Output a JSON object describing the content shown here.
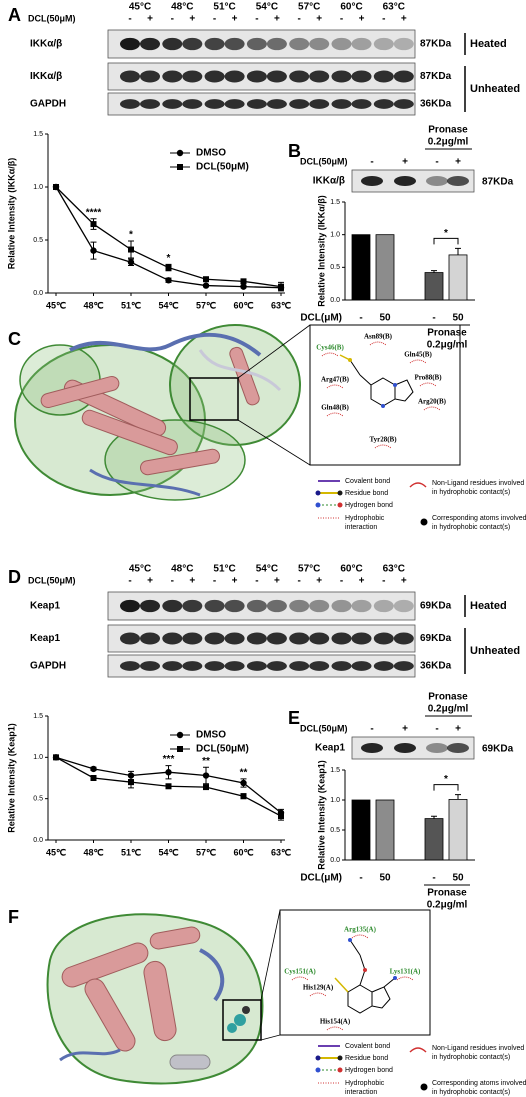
{
  "blot_A": {
    "letter": "A",
    "treatment": "DCL(50μM)",
    "temperatures": [
      "45°C",
      "48°C",
      "51°C",
      "54°C",
      "57°C",
      "60°C",
      "63°C"
    ],
    "signs": [
      "-",
      "+"
    ],
    "rows": [
      {
        "protein": "IKKα/β",
        "size": "87KDa"
      },
      {
        "protein": "IKKα/β",
        "size": "87KDa"
      },
      {
        "protein": "GAPDH",
        "size": "36KDa"
      }
    ],
    "groups": [
      "Heated",
      "Unheated"
    ]
  },
  "blot_B": {
    "letter": "B",
    "treatment": "DCL(50μM)",
    "signs": [
      "-",
      "+",
      "-",
      "+"
    ],
    "pronase": [
      "Pronase",
      "0.2μg/ml"
    ],
    "protein": "IKKα/β",
    "size": "87KDa"
  },
  "docking_C": {
    "letter": "C",
    "residues": [
      {
        "name": "Asn89(B)",
        "color": "#000000"
      },
      {
        "name": "Cys46(B)",
        "color": "#2e8b2e"
      },
      {
        "name": "Gln45(B)",
        "color": "#000000"
      },
      {
        "name": "Arg47(B)",
        "color": "#000000"
      },
      {
        "name": "Pro88(B)",
        "color": "#000000"
      },
      {
        "name": "Arg20(B)",
        "color": "#000000"
      },
      {
        "name": "Gln48(B)",
        "color": "#000000"
      },
      {
        "name": "Tyr28(B)",
        "color": "#000000"
      }
    ],
    "legend": [
      "Covalent bond",
      "Residue bond",
      "Hydrogen bond",
      [
        "Non-Ligand residues involved",
        "in hydrophobic contact(s)"
      ],
      [
        "Hydrophobic",
        "interaction"
      ],
      [
        "Corresponding atoms involved",
        "in hydrophobic contact(s)"
      ]
    ]
  },
  "blot_D": {
    "letter": "D",
    "treatment": "DCL(50μM)",
    "temperatures": [
      "45°C",
      "48°C",
      "51°C",
      "54°C",
      "57°C",
      "60°C",
      "63°C"
    ],
    "signs": [
      "-",
      "+"
    ],
    "rows": [
      {
        "protein": "Keap1",
        "size": "69KDa"
      },
      {
        "protein": "Keap1",
        "size": "69KDa"
      },
      {
        "protein": "GAPDH",
        "size": "36KDa"
      }
    ],
    "groups": [
      "Heated",
      "Unheated"
    ]
  },
  "blot_E": {
    "letter": "E",
    "treatment": "DCL(50μM)",
    "signs": [
      "-",
      "+",
      "-",
      "+"
    ],
    "pronase": [
      "Pronase",
      "0.2μg/ml"
    ],
    "protein": "Keap1",
    "size": "69KDa"
  },
  "docking_F": {
    "letter": "F",
    "residues": [
      {
        "name": "Arg135(A)",
        "color": "#2e8b2e"
      },
      {
        "name": "Cys151(A)",
        "color": "#2e8b2e"
      },
      {
        "name": "Lys131(A)",
        "color": "#2e8b2e"
      },
      {
        "name": "His129(A)",
        "color": "#000000"
      },
      {
        "name": "His154(A)",
        "color": "#000000"
      }
    ],
    "legend": [
      "Covalent bond",
      "Residue bond",
      "Hydrogen bond",
      [
        "Non-Ligand residues involved",
        "in hydrophobic contact(s)"
      ],
      [
        "Hydrophobic",
        "interaction"
      ],
      [
        "Corresponding atoms involved",
        "in hydrophobic contact(s)"
      ]
    ]
  },
  "chart_data": [
    {
      "type": "line",
      "y_label": "Relative Intensity (IKKα/β)",
      "categories": [
        "45℃",
        "48℃",
        "51℃",
        "54℃",
        "57℃",
        "60℃",
        "63℃"
      ],
      "series": [
        {
          "name": "DMSO",
          "color": "#000000",
          "marker": "circle",
          "values": [
            1,
            0.4,
            0.29,
            0.12,
            0.07,
            0.06,
            0.05
          ],
          "errors": [
            0,
            0.08,
            0.03,
            0.02,
            0.01,
            0.01,
            0.02
          ]
        },
        {
          "name": "DCL(50μM)",
          "color": "#000000",
          "marker": "square",
          "values": [
            1,
            0.65,
            0.41,
            0.24,
            0.13,
            0.11,
            0.06
          ],
          "errors": [
            0,
            0.05,
            0.08,
            0.03,
            0.02,
            0.02,
            0.04
          ]
        }
      ],
      "significance": [
        null,
        "****",
        "*",
        "*",
        null,
        null,
        null
      ],
      "ylim": [
        0,
        1.5
      ],
      "yticks": [
        {
          "value": 0,
          "label": "0.0"
        },
        0.5,
        {
          "value": 1,
          "label": "1.0"
        },
        {
          "value": 1.5,
          "label": "1.5"
        }
      ]
    },
    {
      "type": "bar",
      "y_label": "Relative Intensity (IKKα/β)",
      "x_label": "DCL(μM)",
      "categories": [
        "-",
        "50",
        "-",
        "50"
      ],
      "values": [
        1,
        1,
        0.42,
        0.69
      ],
      "errors": [
        0,
        0,
        0.03,
        0.1
      ],
      "colors": [
        "#000000",
        "#8c8c8c",
        "#555555",
        "#d4d4d4"
      ],
      "group_label": [
        "Pronase",
        "0.2μg/ml"
      ],
      "significance": "*",
      "ylim": [
        0,
        1.5
      ],
      "yticks": [
        {
          "value": 0,
          "label": "0.0"
        },
        0.5,
        {
          "value": 1,
          "label": "1.0"
        },
        {
          "value": 1.5,
          "label": "1.5"
        }
      ]
    },
    {
      "type": "line",
      "y_label": "Relative Intensity (Keap1)",
      "categories": [
        "45℃",
        "48℃",
        "51℃",
        "54℃",
        "57℃",
        "60℃",
        "63℃"
      ],
      "series": [
        {
          "name": "DMSO",
          "color": "#000000",
          "marker": "circle",
          "values": [
            1,
            0.86,
            0.78,
            0.82,
            0.78,
            0.69,
            0.33
          ],
          "errors": [
            0,
            0.02,
            0.05,
            0.08,
            0.1,
            0.05,
            0.04
          ]
        },
        {
          "name": "DCL(50μM)",
          "color": "#000000",
          "marker": "square",
          "values": [
            1,
            0.75,
            0.7,
            0.65,
            0.64,
            0.53,
            0.29
          ],
          "errors": [
            0,
            0.03,
            0.07,
            0.02,
            0.02,
            0.03,
            0.05
          ]
        }
      ],
      "significance": [
        null,
        null,
        null,
        "***",
        "**",
        "**",
        null
      ],
      "ylim": [
        0,
        1.5
      ],
      "yticks": [
        {
          "value": 0,
          "label": "0.0"
        },
        0.5,
        {
          "value": 1,
          "label": "1.0"
        },
        {
          "value": 1.5,
          "label": "1.5"
        }
      ]
    },
    {
      "type": "bar",
      "y_label": "Relative Intensity (Keap1)",
      "x_label": "DCL(μM)",
      "categories": [
        "-",
        "50",
        "-",
        "50"
      ],
      "values": [
        1,
        1,
        0.69,
        1.01
      ],
      "errors": [
        0,
        0,
        0.04,
        0.08
      ],
      "colors": [
        "#000000",
        "#8c8c8c",
        "#555555",
        "#d4d4d4"
      ],
      "group_label": [
        "Pronase",
        "0.2μg/ml"
      ],
      "significance": "*",
      "ylim": [
        0,
        1.5
      ],
      "yticks": [
        {
          "value": 0,
          "label": "0.0"
        },
        0.5,
        {
          "value": 1,
          "label": "1.0"
        },
        {
          "value": 1.5,
          "label": "1.5"
        }
      ]
    }
  ]
}
